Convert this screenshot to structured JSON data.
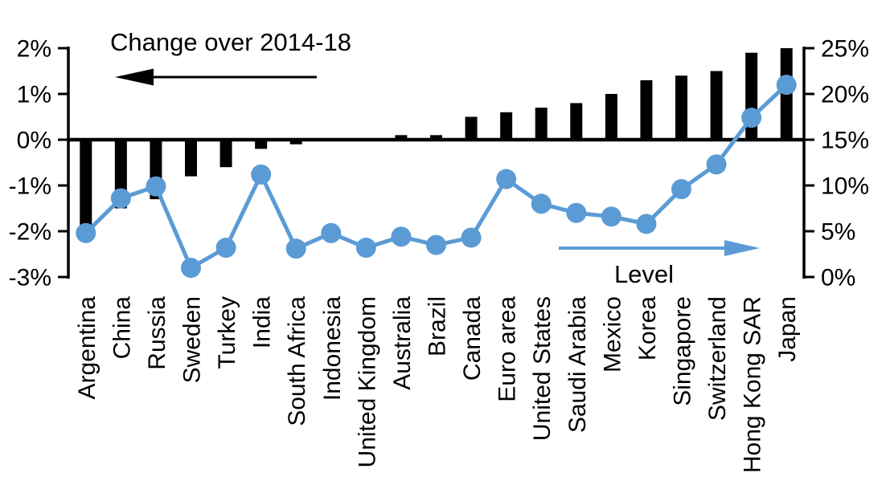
{
  "page": {
    "background": "#ffffff"
  },
  "chart_data": {
    "type": "combo",
    "title": "Change over 2014-18",
    "categories": [
      "Argentina",
      "China",
      "Russia",
      "Sweden",
      "Turkey",
      "India",
      "South Africa",
      "Indonesia",
      "United Kingdom",
      "Australia",
      "Brazil",
      "Canada",
      "Euro area",
      "United States",
      "Saudi Arabia",
      "Mexico",
      "Korea",
      "Singapore",
      "Switzerland",
      "Hong Kong SAR",
      "Japan"
    ],
    "series": [
      {
        "name": "Change over 2014-18",
        "type": "bar",
        "axis": "left",
        "unit": "%",
        "color": "#000000",
        "values": [
          -1.9,
          -1.5,
          -1.3,
          -0.8,
          -0.6,
          -0.2,
          -0.1,
          0,
          0,
          0.1,
          0.1,
          0.5,
          0.6,
          0.7,
          0.8,
          1.0,
          1.3,
          1.4,
          1.5,
          1.9,
          2.0
        ]
      },
      {
        "name": "Level",
        "type": "line",
        "axis": "right",
        "unit": "%",
        "color": "#5b9bd5",
        "values": [
          4.8,
          8.6,
          9.9,
          1.0,
          3.2,
          11.2,
          3.1,
          4.8,
          3.2,
          4.4,
          3.5,
          4.3,
          10.7,
          8.0,
          7.0,
          6.6,
          5.8,
          9.6,
          12.3,
          17.4,
          21.0
        ]
      }
    ],
    "left_axis": {
      "range": [
        -3,
        2
      ],
      "tick_labels": [
        "2%",
        "1%",
        "0%",
        "-1%",
        "-2%",
        "-3%"
      ]
    },
    "right_axis": {
      "range": [
        0,
        25
      ],
      "tick_labels": [
        "25%",
        "20%",
        "15%",
        "10%",
        "5%",
        "0%"
      ]
    },
    "annotations": {
      "bar_series_label": "Change over 2014-18",
      "line_series_label": "Level",
      "bar_arrow_direction": "left",
      "line_arrow_direction": "right"
    },
    "grid": false,
    "legend_position": "in-plot arrow annotations"
  }
}
